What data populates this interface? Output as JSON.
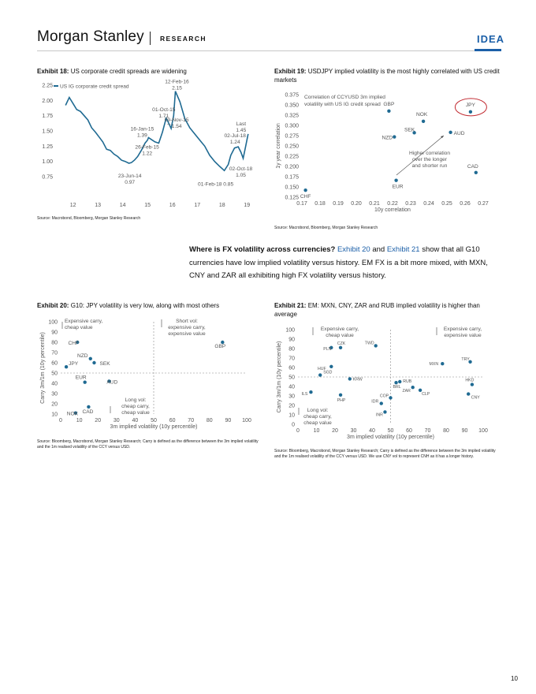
{
  "header": {
    "brand": "Morgan Stanley",
    "section": "RESEARCH",
    "tag": "IDEA",
    "accent": "#1b5fa8"
  },
  "exhibit18": {
    "num": "Exhibit 18:",
    "title": "US corporate credit spreads are widening",
    "source": "Source: Macrobond, Bloomberg, Morgan Stanley Research"
  },
  "exhibit19": {
    "num": "Exhibit 19:",
    "title": "USDJPY implied volatility is the most highly correlated with US credit markets",
    "source": "Source: Macrobond, Bloomberg, Morgan Stanley Research"
  },
  "paragraph": {
    "lead": "Where is FX volatility across currencies?",
    "link1": "Exhibit 20",
    "mid1": " and ",
    "link2": "Exhibit 21",
    "rest": " show that all G10 currencies have low implied volatility versus history. EM FX is a bit more mixed, with MXN, CNY and ZAR all exhibiting high FX volatility versus history."
  },
  "exhibit20": {
    "num": "Exhibit 20:",
    "title": "G10: JPY volatility is very low, along with most others",
    "source": "Source: Bloomberg, Macrobond, Morgan Stanley Research; Carry is defined as the difference between the 3m implied volatility and the 1m realised volatility of the CCY versus USD."
  },
  "exhibit21": {
    "num": "Exhibit 21:",
    "title": "EM: MXN, CNY, ZAR and RUB implied volatility is higher than average",
    "source": "Source: Bloomberg, Macrobond, Morgan Stanley Research; Carry is defined as the difference between the 3m implied volatility and the 1m realised volatility of the CCY versus USD. We use CNY vol to represent CNH as it has a longer history."
  },
  "page_number": "10",
  "chart_data": [
    {
      "id": "ex18",
      "type": "line",
      "color": "#1f6a92",
      "series": [
        {
          "name": "US IG corporate credit spread",
          "x": [
            2011.7,
            2011.85,
            2012.0,
            2012.15,
            2012.3,
            2012.45,
            2012.6,
            2012.75,
            2012.9,
            2013.05,
            2013.2,
            2013.35,
            2013.5,
            2013.65,
            2013.8,
            2013.95,
            2014.1,
            2014.25,
            2014.35,
            2014.47,
            2014.6,
            2014.75,
            2014.9,
            2015.0,
            2015.04,
            2015.15,
            2015.3,
            2015.45,
            2015.6,
            2015.75,
            2015.86,
            2015.95,
            2016.05,
            2016.12,
            2016.3,
            2016.5,
            2016.7,
            2016.9,
            2017.1,
            2017.3,
            2017.5,
            2017.7,
            2017.9,
            2018.09,
            2018.25,
            2018.35,
            2018.5,
            2018.65,
            2018.76,
            2018.85,
            2018.95,
            2019.05
          ],
          "y": [
            1.92,
            2.05,
            1.95,
            1.85,
            1.82,
            1.75,
            1.68,
            1.55,
            1.48,
            1.4,
            1.32,
            1.2,
            1.18,
            1.12,
            1.08,
            1.02,
            1.0,
            0.97,
            0.98,
            1.02,
            1.08,
            1.18,
            1.3,
            1.35,
            1.39,
            1.36,
            1.32,
            1.3,
            1.48,
            1.71,
            1.62,
            1.54,
            1.75,
            2.15,
            1.98,
            1.7,
            1.55,
            1.45,
            1.35,
            1.25,
            1.1,
            1.0,
            0.92,
            0.85,
            0.95,
            1.1,
            1.22,
            1.24,
            1.15,
            1.05,
            1.25,
            1.45
          ]
        }
      ],
      "x_ticks": [
        "12",
        "13",
        "14",
        "15",
        "16",
        "17",
        "18",
        "19"
      ],
      "y_ticks": [
        "0.75",
        "1.00",
        "1.25",
        "1.50",
        "1.75",
        "2.00",
        "2.25"
      ],
      "ylim": [
        0.75,
        2.25
      ],
      "annotations": [
        {
          "text": "12-Feb-16",
          "value": "2.15"
        },
        {
          "text": "01-Oct-15",
          "value": "1.71"
        },
        {
          "text": "16-Jan-15",
          "value": "1.39"
        },
        {
          "text": "09-Nov-15",
          "value": "1.54"
        },
        {
          "text": "26-Feb-15",
          "value": "1.22"
        },
        {
          "text": "23-Jun-14",
          "value": "0.97"
        },
        {
          "text": "01-Feb-18",
          "value": "0.85"
        },
        {
          "text": "02-Jul-18",
          "value": "1.24"
        },
        {
          "text": "02-Oct-18",
          "value": "1.05"
        },
        {
          "text": "Last",
          "value": "1.45"
        }
      ]
    },
    {
      "id": "ex19",
      "type": "scatter",
      "color": "#1f6a92",
      "title": "Correlation of CCYUSD 3m implied volatility with US IG credit spread",
      "xlabel": "10y correlation",
      "ylabel": "1y year correlation",
      "xlim": [
        0.17,
        0.27
      ],
      "ylim": [
        0.125,
        0.375
      ],
      "x_ticks": [
        "0.17",
        "0.18",
        "0.19",
        "0.20",
        "0.21",
        "0.22",
        "0.23",
        "0.24",
        "0.25",
        "0.26",
        "0.27"
      ],
      "y_ticks": [
        "0.125",
        "0.150",
        "0.175",
        "0.200",
        "0.225",
        "0.250",
        "0.275",
        "0.300",
        "0.325",
        "0.350",
        "0.375"
      ],
      "points": [
        {
          "label": "JPY",
          "x": 0.263,
          "y": 0.333
        },
        {
          "label": "GBP",
          "x": 0.218,
          "y": 0.335
        },
        {
          "label": "NOK",
          "x": 0.237,
          "y": 0.31
        },
        {
          "label": "SEK",
          "x": 0.232,
          "y": 0.282
        },
        {
          "label": "NZD",
          "x": 0.221,
          "y": 0.272
        },
        {
          "label": "AUD",
          "x": 0.252,
          "y": 0.283
        },
        {
          "label": "CAD",
          "x": 0.266,
          "y": 0.185
        },
        {
          "label": "EUR",
          "x": 0.222,
          "y": 0.166
        },
        {
          "label": "CHF",
          "x": 0.172,
          "y": 0.142
        }
      ],
      "annotation": "Higher correlation over the longer and shorter run"
    },
    {
      "id": "ex20",
      "type": "scatter",
      "color": "#1f6a92",
      "xlabel": "3m implied volatility (10y percentile)",
      "ylabel": "Carry 3m/1m (10y percentile)",
      "xlim": [
        0,
        100
      ],
      "ylim": [
        10,
        100
      ],
      "x_ticks": [
        "0",
        "10",
        "20",
        "30",
        "40",
        "50",
        "60",
        "70",
        "80",
        "90",
        "100"
      ],
      "y_ticks": [
        "10",
        "20",
        "30",
        "40",
        "50",
        "60",
        "70",
        "80",
        "90",
        "100"
      ],
      "points": [
        {
          "label": "CHF",
          "x": 9,
          "y": 80
        },
        {
          "label": "NZD",
          "x": 16,
          "y": 64
        },
        {
          "label": "SEK",
          "x": 18,
          "y": 60
        },
        {
          "label": "JPY",
          "x": 3,
          "y": 56
        },
        {
          "label": "EUR",
          "x": 13,
          "y": 41
        },
        {
          "label": "AUD",
          "x": 26,
          "y": 42
        },
        {
          "label": "CAD",
          "x": 15,
          "y": 17
        },
        {
          "label": "NOK",
          "x": 8,
          "y": 11
        },
        {
          "label": "GBP",
          "x": 87,
          "y": 80
        }
      ],
      "quadrants": [
        "Expensive carry, cheap value",
        "Short vol: expensive carry, expensive value",
        "Long vol: cheap carry, cheap value"
      ]
    },
    {
      "id": "ex21",
      "type": "scatter",
      "color": "#1f6a92",
      "xlabel": "3m implied volatility (10y percentile)",
      "ylabel": "Carry 3m/1m (10y percentile)",
      "xlim": [
        0,
        100
      ],
      "ylim": [
        0,
        100
      ],
      "x_ticks": [
        "0",
        "10",
        "20",
        "30",
        "40",
        "50",
        "60",
        "70",
        "80",
        "90",
        "100"
      ],
      "y_ticks": [
        "0",
        "10",
        "20",
        "30",
        "40",
        "50",
        "60",
        "70",
        "80",
        "90",
        "100"
      ],
      "points": [
        {
          "label": "PLN",
          "x": 18,
          "y": 81
        },
        {
          "label": "CZK",
          "x": 23,
          "y": 81
        },
        {
          "label": "TWD",
          "x": 42,
          "y": 83
        },
        {
          "label": "HUF",
          "x": 18,
          "y": 61
        },
        {
          "label": "SGD",
          "x": 12,
          "y": 52
        },
        {
          "label": "KRW",
          "x": 28,
          "y": 48
        },
        {
          "label": "MXN",
          "x": 78,
          "y": 64
        },
        {
          "label": "TRY",
          "x": 93,
          "y": 66
        },
        {
          "label": "BRL",
          "x": 53,
          "y": 44
        },
        {
          "label": "RUB",
          "x": 55,
          "y": 45
        },
        {
          "label": "HKD",
          "x": 94,
          "y": 42
        },
        {
          "label": "ZAR",
          "x": 62,
          "y": 39
        },
        {
          "label": "CLP",
          "x": 66,
          "y": 36
        },
        {
          "label": "ILS",
          "x": 7,
          "y": 34
        },
        {
          "label": "PHP",
          "x": 23,
          "y": 31
        },
        {
          "label": "COP",
          "x": 50,
          "y": 28
        },
        {
          "label": "IDR",
          "x": 45,
          "y": 22
        },
        {
          "label": "CNY",
          "x": 92,
          "y": 32
        },
        {
          "label": "INR",
          "x": 47,
          "y": 13
        }
      ],
      "quadrants": [
        "Expensive carry, cheap value",
        "Expensive carry, expensive value",
        "Long vol: cheap carry, cheap value"
      ]
    }
  ]
}
